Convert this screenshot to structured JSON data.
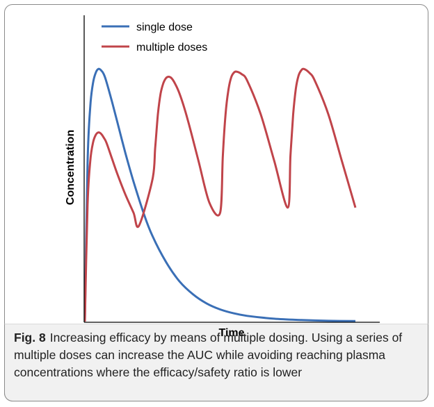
{
  "chart_data": {
    "type": "line",
    "title": "",
    "xlabel": "Time",
    "ylabel": "Concentration",
    "xlim": [
      0,
      10
    ],
    "ylim": [
      0,
      1
    ],
    "grid": false,
    "legend_position": "top-left",
    "colors": {
      "single_dose": "#3a6fb6",
      "multiple_doses": "#c0444a"
    },
    "series": [
      {
        "name": "single dose",
        "x": [
          0,
          0.1,
          0.2,
          0.3,
          0.4,
          0.5,
          0.6,
          0.7,
          0.8,
          1.0,
          1.2,
          1.5,
          1.8,
          2.2,
          2.5,
          3.0,
          3.5,
          4.0,
          4.5,
          5.0,
          5.5,
          6.0,
          7.0,
          8.0,
          9.0,
          10.0
        ],
        "y": [
          0.0,
          0.61,
          0.83,
          0.92,
          0.96,
          0.975,
          0.97,
          0.955,
          0.925,
          0.85,
          0.77,
          0.65,
          0.54,
          0.41,
          0.33,
          0.23,
          0.155,
          0.105,
          0.07,
          0.047,
          0.032,
          0.022,
          0.011,
          0.006,
          0.003,
          0.002
        ]
      },
      {
        "name": "multiple doses",
        "x": [
          0,
          0.1,
          0.2,
          0.3,
          0.4,
          0.5,
          0.6,
          0.7,
          0.8,
          1.0,
          1.2,
          1.5,
          1.8,
          2.0,
          2.5,
          2.6,
          2.7,
          2.8,
          2.9,
          3.0,
          3.1,
          3.2,
          3.3,
          3.5,
          3.8,
          4.2,
          4.6,
          5.0,
          5.1,
          5.2,
          5.3,
          5.4,
          5.5,
          5.6,
          5.8,
          6.0,
          6.5,
          7.0,
          7.5,
          7.6,
          7.7,
          7.8,
          7.9,
          8.0,
          8.1,
          8.3,
          8.5,
          9.0,
          9.5,
          10.0
        ],
        "y": [
          0.0,
          0.45,
          0.62,
          0.69,
          0.72,
          0.73,
          0.725,
          0.71,
          0.69,
          0.63,
          0.57,
          0.49,
          0.42,
          0.37,
          0.55,
          0.67,
          0.8,
          0.88,
          0.92,
          0.94,
          0.945,
          0.94,
          0.925,
          0.88,
          0.78,
          0.62,
          0.46,
          0.42,
          0.64,
          0.8,
          0.89,
          0.94,
          0.96,
          0.965,
          0.955,
          0.93,
          0.8,
          0.62,
          0.44,
          0.64,
          0.8,
          0.9,
          0.95,
          0.97,
          0.975,
          0.96,
          0.93,
          0.8,
          0.62,
          0.44
        ]
      }
    ]
  },
  "caption": {
    "label": "Fig. 8",
    "text": "Increasing efficacy by means of multiple dosing. Using a series of multiple doses can increase the AUC while avoiding reaching plasma concentrations where the efficacy/safety ratio is lower"
  }
}
